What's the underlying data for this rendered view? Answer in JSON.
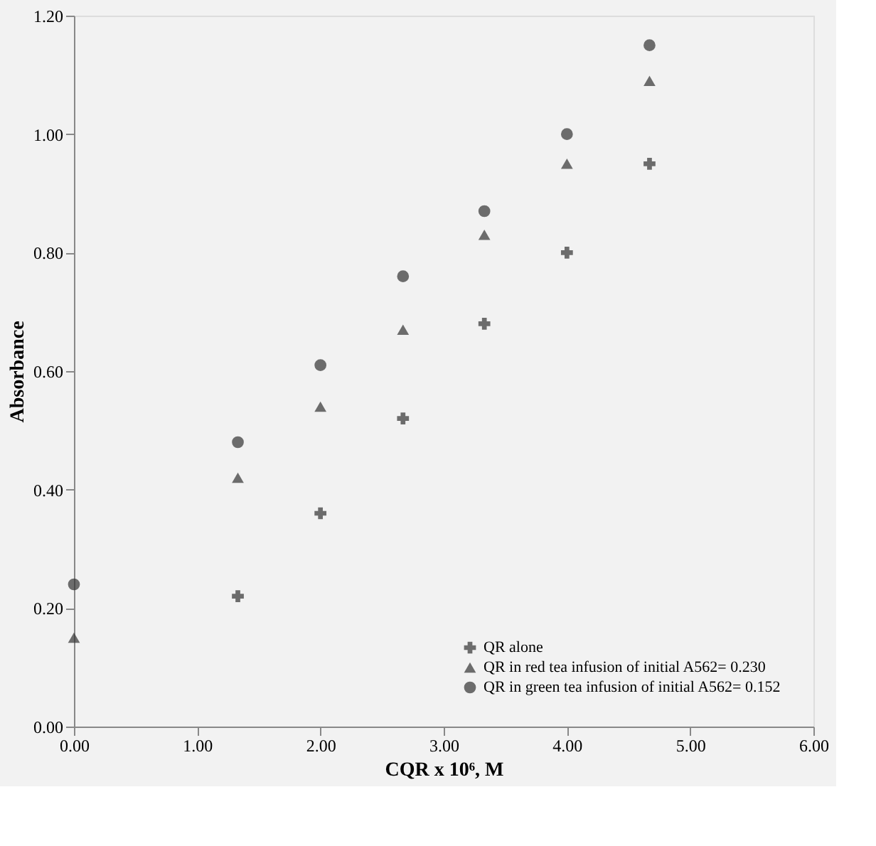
{
  "chart_data": {
    "type": "scatter",
    "xlabel": "CQR x 10⁶, M",
    "ylabel": "Absorbance",
    "x": [
      0,
      1.33,
      2,
      2.67,
      3.33,
      4,
      4.67
    ],
    "series": [
      {
        "name": "QR alone",
        "color": "#333333",
        "marker": "cross",
        "values": [
          null,
          0.22,
          0.36,
          0.52,
          0.68,
          0.8,
          0.95
        ]
      },
      {
        "name": "QR in red tea infusion of initial A562= 0.230",
        "color": "#333333",
        "marker": "triangle",
        "values": [
          0.15,
          0.42,
          0.54,
          0.67,
          0.83,
          0.95,
          1.09
        ]
      },
      {
        "name": "QR in green tea infusion of initial A562= 0.152",
        "color": "#333333",
        "marker": "circle",
        "values": [
          0.24,
          0.48,
          0.61,
          0.76,
          0.87,
          1.0,
          1.15
        ]
      }
    ],
    "xlim": [
      0,
      6
    ],
    "ylim": [
      0,
      1.2
    ],
    "xticks": [
      {
        "value": 0,
        "label": "0.00"
      },
      {
        "value": 1,
        "label": "1.00"
      },
      {
        "value": 2,
        "label": "2.00"
      },
      {
        "value": 3,
        "label": "3.00"
      },
      {
        "value": 4,
        "label": "4.00"
      },
      {
        "value": 5,
        "label": "5.00"
      },
      {
        "value": 6,
        "label": "6.00"
      }
    ],
    "yticks": [
      {
        "value": 0,
        "label": "0.00"
      },
      {
        "value": 0.2,
        "label": "0.20"
      },
      {
        "value": 0.4,
        "label": "0.40"
      },
      {
        "value": 0.6,
        "label": "0.60"
      },
      {
        "value": 0.8,
        "label": "0.80"
      },
      {
        "value": 1.0,
        "label": "1.00"
      },
      {
        "value": 1.2,
        "label": "1.20"
      }
    ],
    "grid": false,
    "legend": "bottom right"
  }
}
